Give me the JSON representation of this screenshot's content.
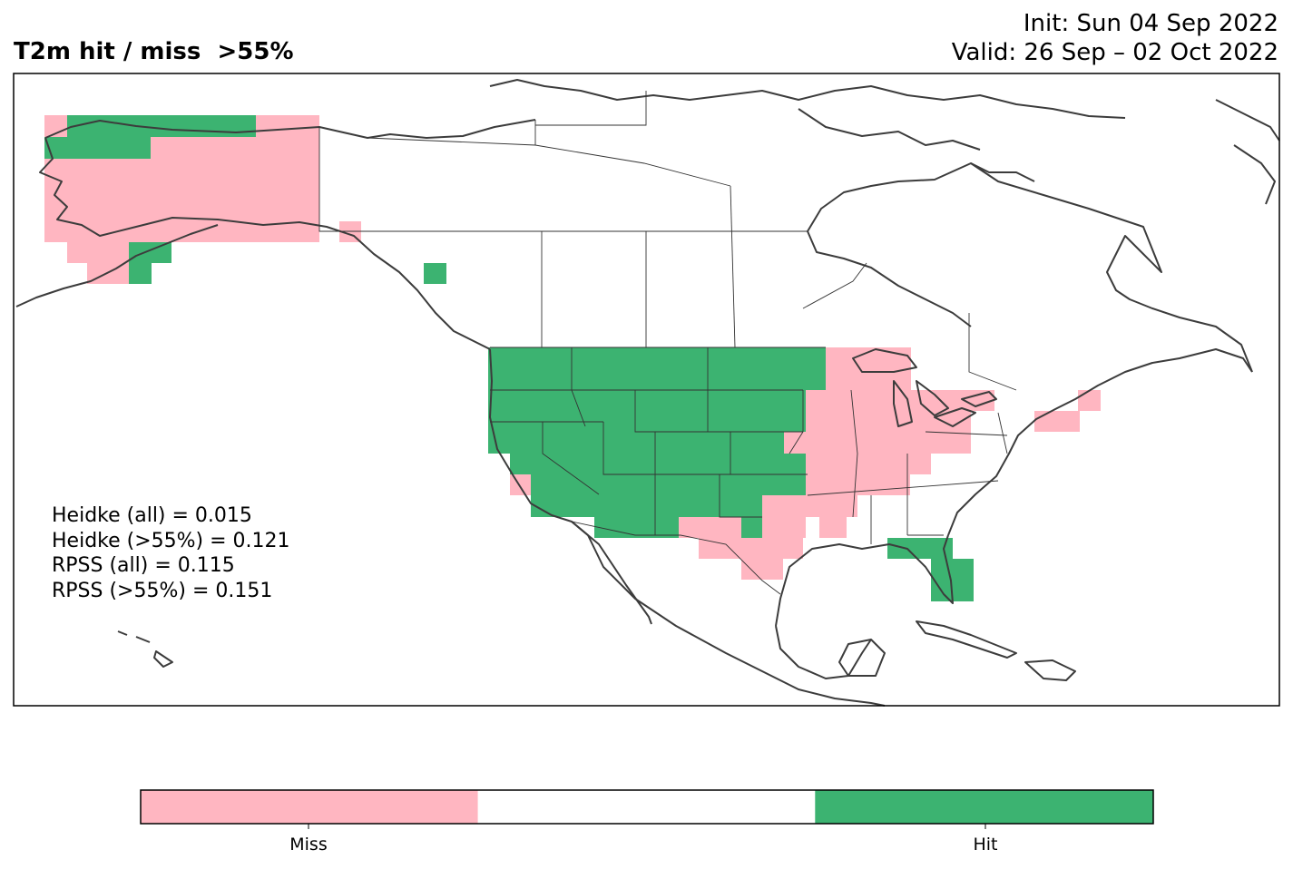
{
  "title": {
    "left": "T2m hit / miss  >55%",
    "init": "Init: Sun 04 Sep 2022",
    "valid": "Valid: 26 Sep – 02 Oct 2022"
  },
  "stats": [
    "Heidke (all) = 0.015",
    "Heidke (>55%) = 0.121",
    "RPSS (all) = 0.115",
    "RPSS (>55%) = 0.151"
  ],
  "colorbar": {
    "labels": {
      "miss": "Miss",
      "hit": "Hit"
    },
    "colors": {
      "miss": "#ffb6c1",
      "neutral": "#ffffff",
      "hit": "#3cb371"
    }
  },
  "colors": {
    "miss": "#ffb6c1",
    "hit": "#3cb371",
    "coast": "#3c3c3c",
    "border": "#000000"
  }
}
